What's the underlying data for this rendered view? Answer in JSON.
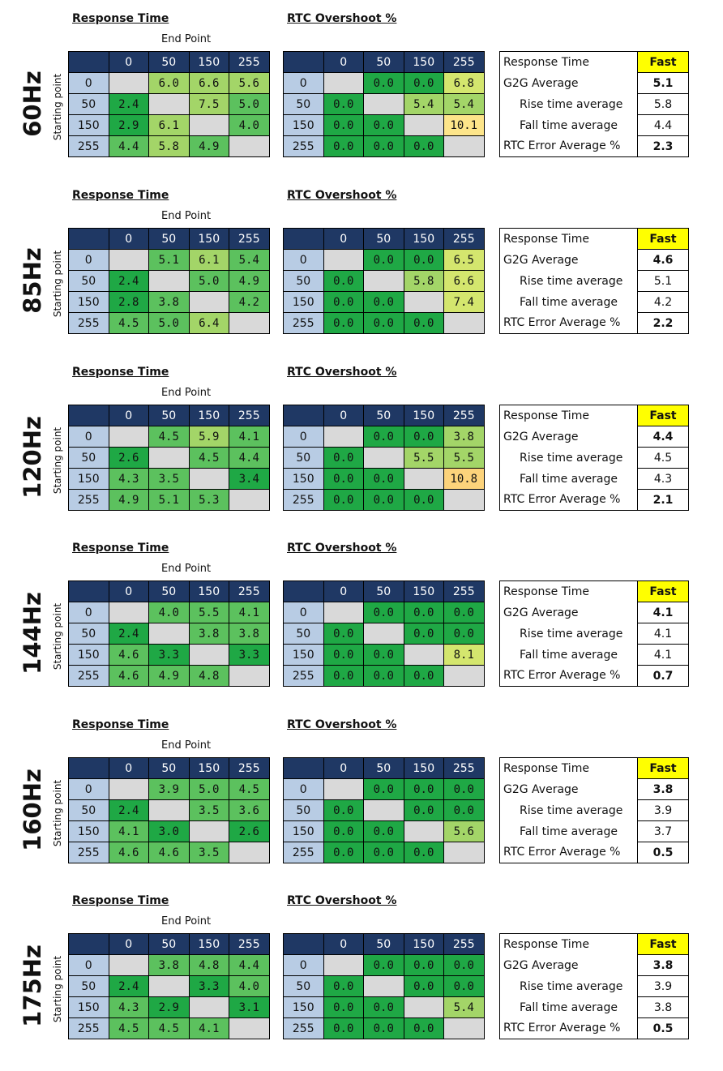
{
  "labels": {
    "response_time": "Response Time",
    "rtc_overshoot": "RTC Overshoot %",
    "end_point": "End Point",
    "starting_point": "Starting point"
  },
  "colors": {
    "header": "#1f3864",
    "row_header": "#b8cce4",
    "diag": "#d9d9d9",
    "dark_green": "#1fa845",
    "green": "#5cc15e",
    "light_green": "#a3d568",
    "yellow_green": "#d4e66e",
    "light_yellow": "#fde58a",
    "orange_yellow": "#fcd37b",
    "fast": "#ffff00"
  },
  "chart_data": {
    "type": "table",
    "columns": [
      "0",
      "50",
      "150",
      "255"
    ],
    "rows": [
      "0",
      "50",
      "150",
      "255"
    ],
    "summary_labels": [
      "Response Time",
      "G2G Average",
      "Rise time average",
      "Fall time average",
      "RTC Error Average %"
    ],
    "blocks": [
      {
        "hz": "60Hz",
        "response": [
          [
            "",
            "6.0",
            "6.6",
            "5.6"
          ],
          [
            "2.4",
            "",
            "7.5",
            "5.0"
          ],
          [
            "2.9",
            "6.1",
            "",
            "4.0"
          ],
          [
            "4.4",
            "5.8",
            "4.9",
            ""
          ]
        ],
        "overshoot": [
          [
            "",
            "0.0",
            "0.0",
            "6.8"
          ],
          [
            "0.0",
            "",
            "5.4",
            "5.4"
          ],
          [
            "0.0",
            "0.0",
            "",
            "10.1"
          ],
          [
            "0.0",
            "0.0",
            "0.0",
            ""
          ]
        ],
        "summary": [
          "Fast",
          "5.1",
          "5.8",
          "4.4",
          "2.3"
        ]
      },
      {
        "hz": "85Hz",
        "response": [
          [
            "",
            "5.1",
            "6.1",
            "5.4"
          ],
          [
            "2.4",
            "",
            "5.0",
            "4.9"
          ],
          [
            "2.8",
            "3.8",
            "",
            "4.2"
          ],
          [
            "4.5",
            "5.0",
            "6.4",
            ""
          ]
        ],
        "overshoot": [
          [
            "",
            "0.0",
            "0.0",
            "6.5"
          ],
          [
            "0.0",
            "",
            "5.8",
            "6.6"
          ],
          [
            "0.0",
            "0.0",
            "",
            "7.4"
          ],
          [
            "0.0",
            "0.0",
            "0.0",
            ""
          ]
        ],
        "summary": [
          "Fast",
          "4.6",
          "5.1",
          "4.2",
          "2.2"
        ]
      },
      {
        "hz": "120Hz",
        "response": [
          [
            "",
            "4.5",
            "5.9",
            "4.1"
          ],
          [
            "2.6",
            "",
            "4.5",
            "4.4"
          ],
          [
            "4.3",
            "3.5",
            "",
            "3.4"
          ],
          [
            "4.9",
            "5.1",
            "5.3",
            ""
          ]
        ],
        "overshoot": [
          [
            "",
            "0.0",
            "0.0",
            "3.8"
          ],
          [
            "0.0",
            "",
            "5.5",
            "5.5"
          ],
          [
            "0.0",
            "0.0",
            "",
            "10.8"
          ],
          [
            "0.0",
            "0.0",
            "0.0",
            ""
          ]
        ],
        "summary": [
          "Fast",
          "4.4",
          "4.5",
          "4.3",
          "2.1"
        ]
      },
      {
        "hz": "144Hz",
        "response": [
          [
            "",
            "4.0",
            "5.5",
            "4.1"
          ],
          [
            "2.4",
            "",
            "3.8",
            "3.8"
          ],
          [
            "4.6",
            "3.3",
            "",
            "3.3"
          ],
          [
            "4.6",
            "4.9",
            "4.8",
            ""
          ]
        ],
        "overshoot": [
          [
            "",
            "0.0",
            "0.0",
            "0.0"
          ],
          [
            "0.0",
            "",
            "0.0",
            "0.0"
          ],
          [
            "0.0",
            "0.0",
            "",
            "8.1"
          ],
          [
            "0.0",
            "0.0",
            "0.0",
            ""
          ]
        ],
        "summary": [
          "Fast",
          "4.1",
          "4.1",
          "4.1",
          "0.7"
        ]
      },
      {
        "hz": "160Hz",
        "response": [
          [
            "",
            "3.9",
            "5.0",
            "4.5"
          ],
          [
            "2.4",
            "",
            "3.5",
            "3.6"
          ],
          [
            "4.1",
            "3.0",
            "",
            "2.6"
          ],
          [
            "4.6",
            "4.6",
            "3.5",
            ""
          ]
        ],
        "overshoot": [
          [
            "",
            "0.0",
            "0.0",
            "0.0"
          ],
          [
            "0.0",
            "",
            "0.0",
            "0.0"
          ],
          [
            "0.0",
            "0.0",
            "",
            "5.6"
          ],
          [
            "0.0",
            "0.0",
            "0.0",
            ""
          ]
        ],
        "summary": [
          "Fast",
          "3.8",
          "3.9",
          "3.7",
          "0.5"
        ]
      },
      {
        "hz": "175Hz",
        "response": [
          [
            "",
            "3.8",
            "4.8",
            "4.4"
          ],
          [
            "2.4",
            "",
            "3.3",
            "4.0"
          ],
          [
            "4.3",
            "2.9",
            "",
            "3.1"
          ],
          [
            "4.5",
            "4.5",
            "4.1",
            ""
          ]
        ],
        "overshoot": [
          [
            "",
            "0.0",
            "0.0",
            "0.0"
          ],
          [
            "0.0",
            "",
            "0.0",
            "0.0"
          ],
          [
            "0.0",
            "0.0",
            "",
            "5.4"
          ],
          [
            "0.0",
            "0.0",
            "0.0",
            ""
          ]
        ],
        "summary": [
          "Fast",
          "3.8",
          "3.9",
          "3.8",
          "0.5"
        ]
      }
    ]
  }
}
